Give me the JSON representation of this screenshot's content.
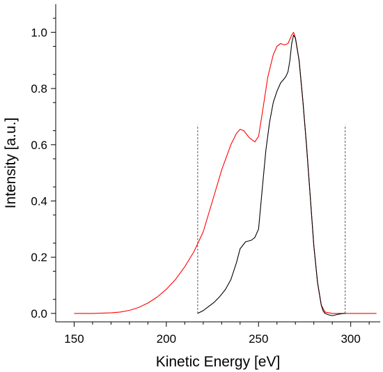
{
  "chart_data": {
    "type": "line",
    "xlabel": "Kinetic Energy [eV]",
    "ylabel": "Intensity [a.u.]",
    "xlim": [
      140,
      316
    ],
    "ylim": [
      -0.03,
      1.1
    ],
    "xticks": [
      150,
      200,
      250,
      300
    ],
    "yticks": [
      0.0,
      0.2,
      0.4,
      0.6,
      0.8,
      1.0
    ],
    "x_tick_labels": [
      "150",
      "200",
      "250",
      "300"
    ],
    "y_tick_labels": [
      "0.0",
      "0.2",
      "0.4",
      "0.6",
      "0.8",
      "1.0"
    ],
    "grid": false,
    "legend": "none",
    "series": [
      {
        "color": "#ff0000",
        "x": [
          150,
          160,
          170,
          175,
          180,
          185,
          190,
          195,
          200,
          205,
          210,
          215,
          220,
          225,
          230,
          235,
          238,
          240,
          242,
          245,
          248,
          250,
          252,
          255,
          258,
          260,
          262,
          264,
          266,
          268,
          269,
          270,
          272,
          274,
          276,
          278,
          280,
          282,
          284,
          286,
          290,
          295,
          300,
          310,
          314
        ],
        "y": [
          0.0,
          0.0,
          0.002,
          0.005,
          0.011,
          0.021,
          0.037,
          0.058,
          0.086,
          0.121,
          0.166,
          0.22,
          0.29,
          0.4,
          0.51,
          0.6,
          0.64,
          0.655,
          0.65,
          0.625,
          0.61,
          0.63,
          0.71,
          0.84,
          0.92,
          0.95,
          0.96,
          0.955,
          0.96,
          0.99,
          1.0,
          0.98,
          0.9,
          0.76,
          0.6,
          0.42,
          0.24,
          0.11,
          0.03,
          0.005,
          0.0,
          0.0,
          0.0,
          0.0,
          0.0
        ]
      },
      {
        "color": "#000000",
        "x": [
          217,
          220,
          223,
          226,
          229,
          232,
          235,
          238,
          240,
          243,
          246,
          248,
          250,
          252,
          254,
          256,
          258,
          260,
          262,
          264,
          265,
          266,
          267,
          268,
          269,
          270,
          272,
          274,
          276,
          278,
          280,
          282,
          284,
          285,
          286,
          288,
          290,
          292,
          294,
          296,
          297
        ],
        "y": [
          0.0,
          0.01,
          0.025,
          0.04,
          0.06,
          0.085,
          0.12,
          0.18,
          0.23,
          0.255,
          0.26,
          0.27,
          0.3,
          0.44,
          0.58,
          0.68,
          0.75,
          0.79,
          0.82,
          0.835,
          0.845,
          0.86,
          0.9,
          0.96,
          0.99,
          0.98,
          0.9,
          0.76,
          0.6,
          0.42,
          0.24,
          0.11,
          0.03,
          0.01,
          0.0,
          -0.005,
          -0.008,
          -0.005,
          -0.002,
          0.0,
          0.0
        ]
      }
    ],
    "vertical_markers": [
      {
        "x": 217,
        "y_top": 0.67,
        "style": "dashed",
        "color": "#555555"
      },
      {
        "x": 297,
        "y_top": 0.67,
        "style": "dashed",
        "color": "#555555"
      }
    ]
  }
}
